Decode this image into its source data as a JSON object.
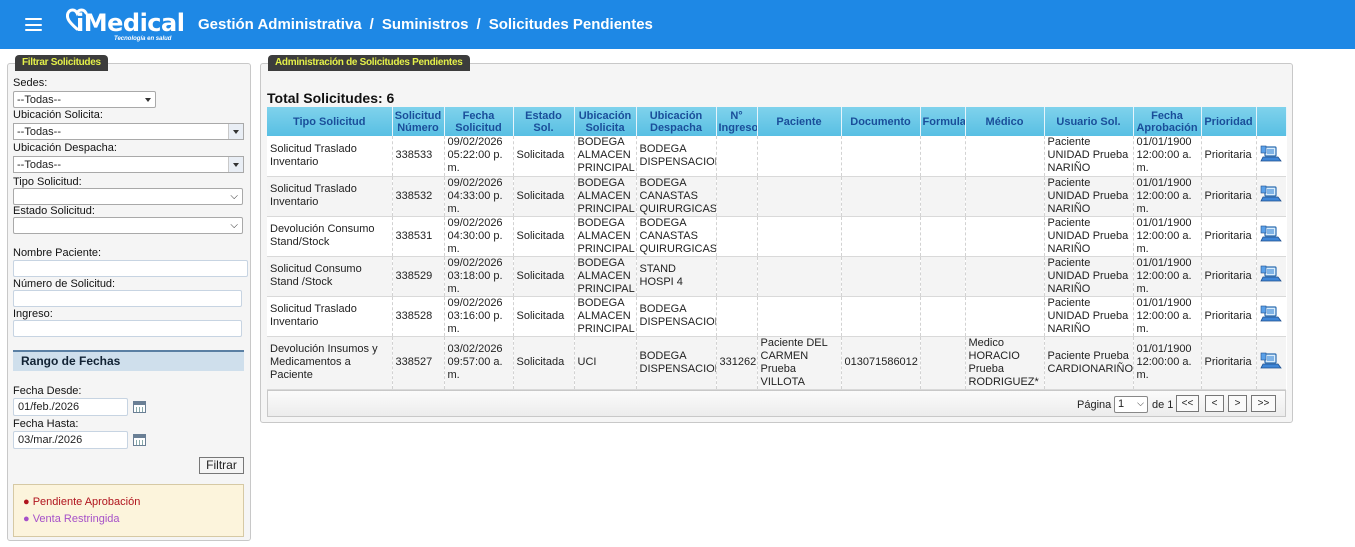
{
  "header": {
    "logo_text": "iMedical",
    "logo_subtitle": "Tecnología en salud",
    "breadcrumb": [
      "Gestión Administrativa",
      "Suministros",
      "Solicitudes Pendientes"
    ],
    "separator": "/"
  },
  "filters": {
    "panel_title": "Filtrar Solicitudes",
    "sedes_label": "Sedes:",
    "sedes_value": "--Todas--",
    "ubicacion_solicita_label": "Ubicación Solicita:",
    "ubicacion_solicita_value": "--Todas--",
    "ubicacion_despacha_label": "Ubicación Despacha:",
    "ubicacion_despacha_value": "--Todas--",
    "tipo_solicitud_label": "Tipo Solicitud:",
    "tipo_solicitud_value": "",
    "estado_solicitud_label": "Estado Solicitud:",
    "estado_solicitud_value": "",
    "nombre_paciente_label": "Nombre Paciente:",
    "numero_solicitud_label": "Número de Solicitud:",
    "ingreso_label": "Ingreso:",
    "rango_title": "Rango de Fechas",
    "fecha_desde_label": "Fecha Desde:",
    "fecha_desde_value": "01/feb./2026",
    "fecha_hasta_label": "Fecha Hasta:",
    "fecha_hasta_value": "03/mar./2026",
    "filtrar_button": "Filtrar",
    "legend": [
      {
        "text": "● Pendiente Aprobación",
        "color": "#b0141e"
      },
      {
        "text": "● Venta Restringida",
        "color": "#a651c9"
      }
    ]
  },
  "main": {
    "panel_title": "Administración de Solicitudes Pendientes",
    "total_label": "Total Solicitudes: 6",
    "columns": [
      "Tipo Solicitud",
      "Solicitud Número",
      "Fecha Solicitud",
      "Estado Sol.",
      "Ubicación Solicita",
      "Ubicación Despacha",
      "N° Ingreso",
      "Paciente",
      "Documento",
      "Formula",
      "Médico",
      "Usuario Sol.",
      "Fecha Aprobación",
      "Prioridad",
      ""
    ],
    "rows": [
      {
        "tipo": "Solicitud Traslado Inventario",
        "numero": "338533",
        "fecha": "09/02/2026 05:22:00 p. m.",
        "estado": "Solicitada",
        "solicita": "BODEGA ALMACEN PRINCIPAL",
        "despacha": "BODEGA DISPENSACION",
        "ingreso": "",
        "paciente": "",
        "documento": "",
        "formula": "",
        "medico": "",
        "usuario": "Paciente UNIDAD Prueba NARIÑO",
        "aprobacion": "01/01/1900 12:00:00 a. m.",
        "prioridad": "Prioritaria"
      },
      {
        "tipo": "Solicitud Traslado Inventario",
        "numero": "338532",
        "fecha": "09/02/2026 04:33:00 p. m.",
        "estado": "Solicitada",
        "solicita": "BODEGA ALMACEN PRINCIPAL",
        "despacha": "BODEGA CANASTAS QUIRURGICAS",
        "ingreso": "",
        "paciente": "",
        "documento": "",
        "formula": "",
        "medico": "",
        "usuario": "Paciente UNIDAD Prueba NARIÑO",
        "aprobacion": "01/01/1900 12:00:00 a. m.",
        "prioridad": "Prioritaria"
      },
      {
        "tipo": "Devolución Consumo Stand/Stock",
        "numero": "338531",
        "fecha": "09/02/2026 04:30:00 p. m.",
        "estado": "Solicitada",
        "solicita": "BODEGA ALMACEN PRINCIPAL",
        "despacha": "BODEGA CANASTAS QUIRURGICAS",
        "ingreso": "",
        "paciente": "",
        "documento": "",
        "formula": "",
        "medico": "",
        "usuario": "Paciente UNIDAD Prueba NARIÑO",
        "aprobacion": "01/01/1900 12:00:00 a. m.",
        "prioridad": "Prioritaria"
      },
      {
        "tipo": "Solicitud Consumo Stand /Stock",
        "numero": "338529",
        "fecha": "09/02/2026 03:18:00 p. m.",
        "estado": "Solicitada",
        "solicita": "BODEGA ALMACEN PRINCIPAL",
        "despacha": "STAND HOSPI 4",
        "ingreso": "",
        "paciente": "",
        "documento": "",
        "formula": "",
        "medico": "",
        "usuario": "Paciente UNIDAD Prueba NARIÑO",
        "aprobacion": "01/01/1900 12:00:00 a. m.",
        "prioridad": "Prioritaria"
      },
      {
        "tipo": "Solicitud Traslado Inventario",
        "numero": "338528",
        "fecha": "09/02/2026 03:16:00 p. m.",
        "estado": "Solicitada",
        "solicita": "BODEGA ALMACEN PRINCIPAL",
        "despacha": "BODEGA DISPENSACION",
        "ingreso": "",
        "paciente": "",
        "documento": "",
        "formula": "",
        "medico": "",
        "usuario": "Paciente UNIDAD Prueba NARIÑO",
        "aprobacion": "01/01/1900 12:00:00 a. m.",
        "prioridad": "Prioritaria"
      },
      {
        "tipo": "Devolución Insumos y Medicamentos a Paciente",
        "numero": "338527",
        "fecha": "03/02/2026 09:57:00 a. m.",
        "estado": "Solicitada",
        "solicita": "UCI",
        "despacha": "BODEGA DISPENSACION",
        "ingreso": "331262",
        "paciente": "Paciente DEL CARMEN Prueba VILLOTA",
        "documento": "013071586012",
        "formula": "",
        "medico": "Medico HORACIO Prueba RODRIGUEZ*",
        "usuario": "Paciente Prueba CARDIONARIÑO",
        "aprobacion": "01/01/1900 12:00:00 a. m.",
        "prioridad": "Prioritaria"
      }
    ],
    "pager": {
      "page_label": "Página",
      "page_value": "1",
      "of_label": "de 1",
      "first": "<<",
      "prev": "<",
      "next": ">",
      "last": ">>"
    }
  },
  "icons": {
    "menu": "hamburger-menu-icon",
    "calendar": "calendar-icon",
    "view": "view-details-icon"
  },
  "colors": {
    "topbar": "#1e88e5",
    "grid_header": "#58bfe3",
    "panel_tab_text": "#e4f04a"
  }
}
